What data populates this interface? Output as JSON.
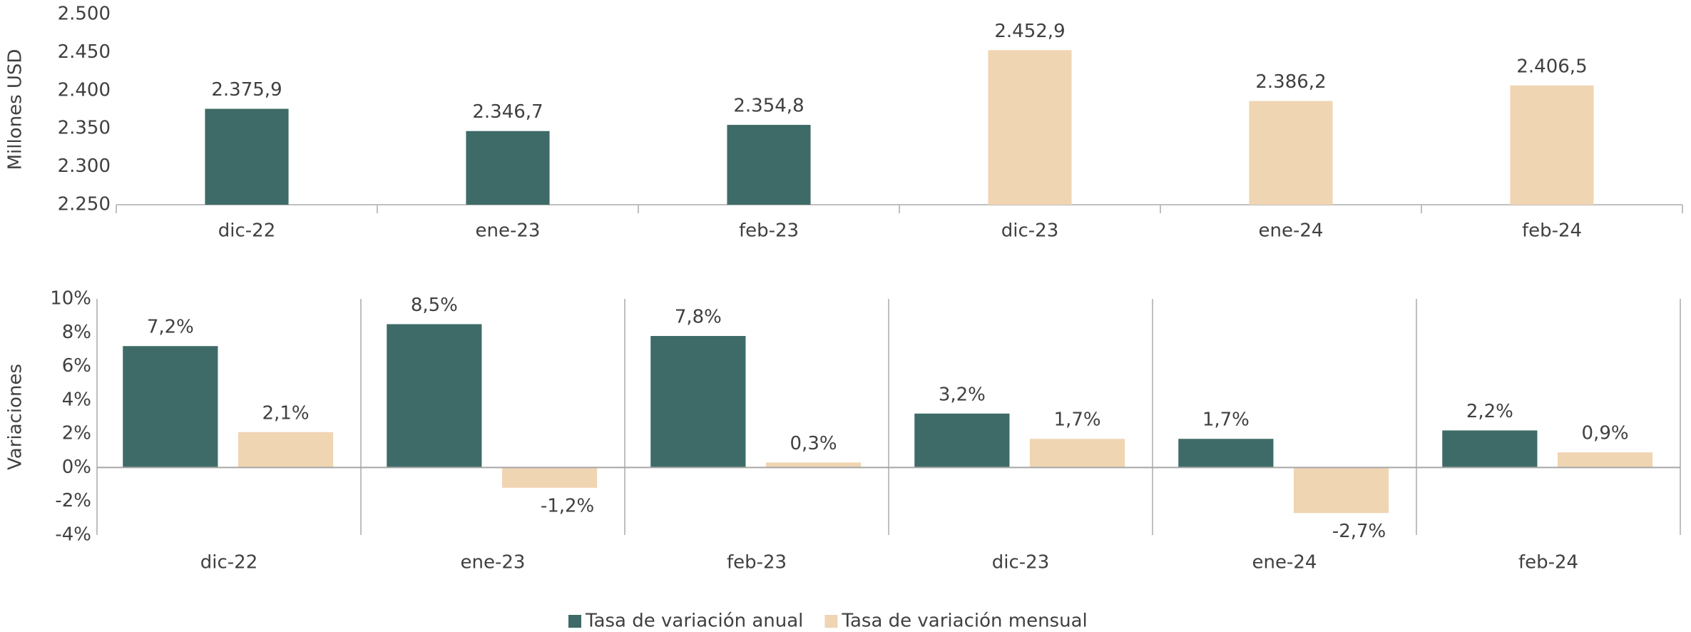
{
  "chart_data": [
    {
      "type": "bar",
      "ylabel": "Millones USD",
      "categories": [
        "dic-22",
        "ene-23",
        "feb-23",
        "dic-23",
        "ene-24",
        "feb-24"
      ],
      "values": [
        2375.9,
        2346.7,
        2354.8,
        2452.9,
        2386.2,
        2406.5
      ],
      "value_labels": [
        "2.375,9",
        "2.346,7",
        "2.354,8",
        "2.452,9",
        "2.386,2",
        "2.406,5"
      ],
      "colors": [
        "#3e6b67",
        "#3e6b67",
        "#3e6b67",
        "#f0d5b3",
        "#f0d5b3",
        "#f0d5b3"
      ],
      "ylim": [
        2250,
        2500
      ],
      "yticks": [
        {
          "value": 2250,
          "label": "2.250"
        },
        {
          "value": 2300,
          "label": "2.300"
        },
        {
          "value": 2350,
          "label": "2.350"
        },
        {
          "value": 2400,
          "label": "2.400"
        },
        {
          "value": 2450,
          "label": "2.450"
        },
        {
          "value": 2500,
          "label": "2.500"
        }
      ]
    },
    {
      "type": "grouped_bar",
      "ylabel": "Variaciones",
      "categories": [
        "dic-22",
        "ene-23",
        "feb-23",
        "dic-23",
        "ene-24",
        "feb-24"
      ],
      "series": [
        {
          "name": "Tasa de variación anual",
          "color": "#3e6b67",
          "values": [
            7.2,
            8.5,
            7.8,
            3.2,
            1.7,
            2.2
          ],
          "value_labels": [
            "7,2%",
            "8,5%",
            "7,8%",
            "3,2%",
            "1,7%",
            "2,2%"
          ]
        },
        {
          "name": "Tasa de variación mensual",
          "color": "#f0d5b3",
          "values": [
            2.1,
            -1.2,
            0.3,
            1.7,
            -2.7,
            0.9
          ],
          "value_labels": [
            "2,1%",
            "-1,2%",
            "0,3%",
            "1,7%",
            "-2,7%",
            "0,9%"
          ]
        }
      ],
      "ylim": [
        -4,
        10
      ],
      "yticks": [
        {
          "value": -4,
          "label": "-4%"
        },
        {
          "value": -2,
          "label": "-2%"
        },
        {
          "value": 0,
          "label": "0%"
        },
        {
          "value": 2,
          "label": "2%"
        },
        {
          "value": 4,
          "label": "4%"
        },
        {
          "value": 6,
          "label": "6%"
        },
        {
          "value": 8,
          "label": "8%"
        },
        {
          "value": 10,
          "label": "10%"
        }
      ],
      "legend": "bottom"
    }
  ]
}
